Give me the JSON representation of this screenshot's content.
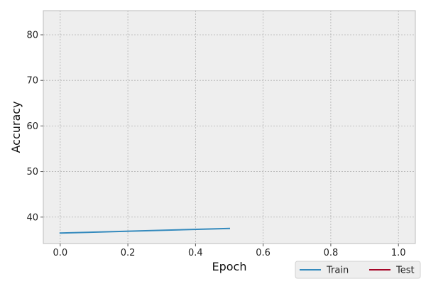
{
  "chart_data": {
    "type": "line",
    "xlabel": "Epoch",
    "ylabel": "Accuracy",
    "xlim": [
      -0.05,
      1.05
    ],
    "ylim": [
      34.2,
      85.3
    ],
    "x_ticks": [
      0.0,
      0.2,
      0.4,
      0.6,
      0.8,
      1.0
    ],
    "x_tick_labels": [
      "0.0",
      "0.2",
      "0.4",
      "0.6",
      "0.8",
      "1.0"
    ],
    "y_ticks": [
      40,
      50,
      60,
      70,
      80
    ],
    "y_tick_labels": [
      "40",
      "50",
      "60",
      "70",
      "80"
    ],
    "grid": true,
    "legend_position": "bottom-right, outside",
    "series": [
      {
        "name": "Train",
        "color": "#348ABD",
        "x": [
          0.0,
          0.5
        ],
        "y": [
          36.5,
          37.5
        ]
      },
      {
        "name": "Test",
        "color": "#A60628",
        "x": [],
        "y": []
      }
    ],
    "colors": {
      "plot_background": "#EEEEEE",
      "grid": "#B2B2B2",
      "spine": "#BCBCBC"
    }
  }
}
